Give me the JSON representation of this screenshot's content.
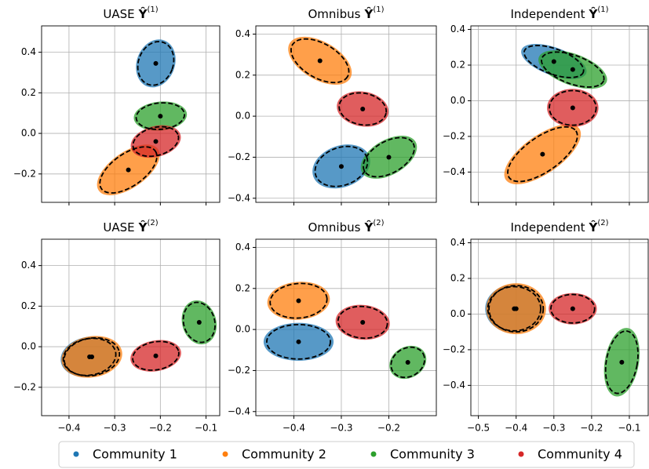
{
  "chart_data": [
    {
      "type": "scatter",
      "title": "UASE",
      "symbol": "Ŷ",
      "superscript": "(1)",
      "xlim": [
        -0.46,
        -0.07
      ],
      "ylim": [
        -0.34,
        0.53
      ],
      "xticks": [
        -0.4,
        -0.3,
        -0.2,
        -0.1
      ],
      "yticks": [
        0.4,
        0.2,
        {
          "value": 0,
          "label": "0.0"
        },
        {
          "value": -0.2,
          "label": "−0.2"
        }
      ],
      "grid": true,
      "xtick_labels": false,
      "series": [
        {
          "color": "#1f77b4",
          "x": -0.21,
          "y": 0.345,
          "ellipse": [
            0.038,
            0.11,
            20
          ]
        },
        {
          "color": "#ff7f0e",
          "x": -0.27,
          "y": -0.18,
          "ellipse": [
            0.072,
            0.08,
            -35
          ]
        },
        {
          "color": "#2ca02c",
          "x": -0.2,
          "y": 0.085,
          "ellipse": [
            0.053,
            0.065,
            -5
          ]
        },
        {
          "color": "#d62728",
          "x": -0.21,
          "y": -0.04,
          "ellipse": [
            0.051,
            0.069,
            -15
          ]
        }
      ]
    },
    {
      "type": "scatter",
      "title": "Omnibus",
      "symbol": "Ŷ",
      "superscript": "(1)",
      "xlim": [
        -0.48,
        -0.1
      ],
      "ylim": [
        -0.42,
        0.44
      ],
      "xticks": [
        -0.4,
        -0.3,
        -0.2
      ],
      "yticks": [
        0.4,
        0.2,
        {
          "value": 0,
          "label": "0.0"
        },
        {
          "value": -0.2,
          "label": "−0.2"
        },
        {
          "value": -0.4,
          "label": "−0.4"
        }
      ],
      "grid": true,
      "xtick_labels": false,
      "series": [
        {
          "color": "#1f77b4",
          "x": -0.3,
          "y": -0.245,
          "ellipse": [
            0.057,
            0.092,
            -20
          ]
        },
        {
          "color": "#ff7f0e",
          "x": -0.345,
          "y": 0.27,
          "ellipse": [
            0.067,
            0.084,
            30
          ]
        },
        {
          "color": "#2ca02c",
          "x": -0.2,
          "y": -0.2,
          "ellipse": [
            0.059,
            0.077,
            -30
          ]
        },
        {
          "color": "#d62728",
          "x": -0.255,
          "y": 0.035,
          "ellipse": [
            0.05,
            0.077,
            10
          ]
        }
      ]
    },
    {
      "type": "scatter",
      "title": "Independent",
      "symbol": "Ŷ",
      "superscript": "(1)",
      "xlim": [
        -0.52,
        -0.05
      ],
      "ylim": [
        -0.57,
        0.42
      ],
      "xticks": [
        -0.5,
        -0.4,
        -0.3,
        -0.2,
        -0.1
      ],
      "yticks": [
        0.4,
        0.2,
        {
          "value": 0,
          "label": "0.0"
        },
        {
          "value": -0.2,
          "label": "−0.2"
        },
        {
          "value": -0.4,
          "label": "−0.4"
        }
      ],
      "grid": true,
      "xtick_labels": false,
      "series": [
        {
          "color": "#1f77b4",
          "x": -0.3,
          "y": 0.22,
          "ellipse": [
            0.083,
            0.071,
            20
          ]
        },
        {
          "color": "#ff7f0e",
          "x": -0.33,
          "y": -0.3,
          "ellipse": [
            0.108,
            0.097,
            -35
          ]
        },
        {
          "color": "#2ca02c",
          "x": -0.25,
          "y": 0.175,
          "ellipse": [
            0.087,
            0.08,
            20
          ]
        },
        {
          "color": "#d62728",
          "x": -0.25,
          "y": -0.04,
          "ellipse": [
            0.062,
            0.097,
            0
          ]
        }
      ]
    },
    {
      "type": "scatter",
      "title": "UASE",
      "symbol": "Ŷ",
      "superscript": "(2)",
      "xlim": [
        -0.46,
        -0.07
      ],
      "ylim": [
        -0.34,
        0.53
      ],
      "xticks": [
        {
          "value": -0.4,
          "label": "−0.4"
        },
        {
          "value": -0.3,
          "label": "−0.3"
        },
        {
          "value": -0.2,
          "label": "−0.2"
        },
        {
          "value": -0.1,
          "label": "−0.1"
        }
      ],
      "yticks": [
        0.4,
        0.2,
        {
          "value": 0,
          "label": "0.0"
        },
        {
          "value": -0.2,
          "label": "−0.2"
        }
      ],
      "grid": true,
      "xtick_labels": true,
      "series": [
        {
          "color": "#1f77b4",
          "x": -0.355,
          "y": -0.05,
          "ellipse": [
            0.058,
            0.09,
            -10
          ]
        },
        {
          "color": "#ff7f0e",
          "x": -0.35,
          "y": -0.05,
          "ellipse": [
            0.061,
            0.092,
            -10
          ]
        },
        {
          "color": "#2ca02c",
          "x": -0.115,
          "y": 0.12,
          "ellipse": [
            0.034,
            0.1,
            -15
          ]
        },
        {
          "color": "#d62728",
          "x": -0.21,
          "y": -0.045,
          "ellipse": [
            0.051,
            0.069,
            -10
          ]
        }
      ]
    },
    {
      "type": "scatter",
      "title": "Omnibus",
      "symbol": "Ŷ",
      "superscript": "(2)",
      "xlim": [
        -0.48,
        -0.1
      ],
      "ylim": [
        -0.42,
        0.44
      ],
      "xticks": [
        {
          "value": -0.4,
          "label": "−0.4"
        },
        {
          "value": -0.3,
          "label": "−0.3"
        },
        {
          "value": -0.2,
          "label": "−0.2"
        }
      ],
      "yticks": [
        0.4,
        0.2,
        {
          "value": 0,
          "label": "0.0"
        },
        {
          "value": -0.2,
          "label": "−0.2"
        },
        {
          "value": -0.4,
          "label": "−0.4"
        }
      ],
      "grid": true,
      "xtick_labels": true,
      "series": [
        {
          "color": "#1f77b4",
          "x": -0.39,
          "y": -0.06,
          "ellipse": [
            0.067,
            0.084,
            0
          ]
        },
        {
          "color": "#ff7f0e",
          "x": -0.39,
          "y": 0.14,
          "ellipse": [
            0.06,
            0.084,
            -5
          ]
        },
        {
          "color": "#2ca02c",
          "x": -0.16,
          "y": -0.16,
          "ellipse": [
            0.037,
            0.069,
            -30
          ]
        },
        {
          "color": "#d62728",
          "x": -0.255,
          "y": 0.035,
          "ellipse": [
            0.052,
            0.077,
            5
          ]
        }
      ]
    },
    {
      "type": "scatter",
      "title": "Independent",
      "symbol": "Ŷ",
      "superscript": "(2)",
      "xlim": [
        -0.52,
        -0.05
      ],
      "ylim": [
        -0.57,
        0.42
      ],
      "xticks": [
        {
          "value": -0.5,
          "label": "−0.5"
        },
        {
          "value": -0.4,
          "label": "−0.4"
        },
        {
          "value": -0.3,
          "label": "−0.3"
        },
        {
          "value": -0.2,
          "label": "−0.2"
        },
        {
          "value": -0.1,
          "label": "−0.1"
        }
      ],
      "yticks": [
        0.4,
        0.2,
        {
          "value": 0,
          "label": "0.0"
        },
        {
          "value": -0.2,
          "label": "−0.2"
        },
        {
          "value": -0.4,
          "label": "−0.4"
        }
      ],
      "grid": true,
      "xtick_labels": true,
      "series": [
        {
          "color": "#1f77b4",
          "x": -0.405,
          "y": 0.03,
          "ellipse": [
            0.07,
            0.124,
            0
          ]
        },
        {
          "color": "#ff7f0e",
          "x": -0.4,
          "y": 0.03,
          "ellipse": [
            0.072,
            0.13,
            0
          ]
        },
        {
          "color": "#2ca02c",
          "x": -0.12,
          "y": -0.27,
          "ellipse": [
            0.041,
            0.177,
            10
          ]
        },
        {
          "color": "#d62728",
          "x": -0.25,
          "y": 0.03,
          "ellipse": [
            0.058,
            0.08,
            0
          ]
        }
      ]
    }
  ],
  "legend": {
    "entries": [
      {
        "name": "Community 1",
        "color": "#1f77b4"
      },
      {
        "name": "Community 2",
        "color": "#ff7f0e"
      },
      {
        "name": "Community 3",
        "color": "#2ca02c"
      },
      {
        "name": "Community 4",
        "color": "#d62728"
      }
    ]
  }
}
